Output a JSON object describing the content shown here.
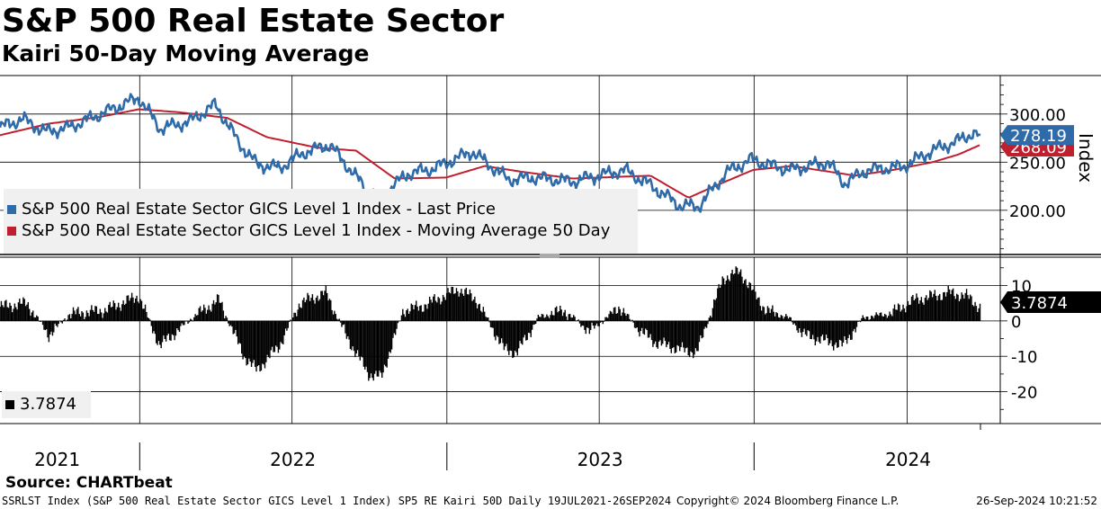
{
  "title": "S&P 500 Real Estate Sector",
  "subtitle": "Kairi 50-Day Moving Average",
  "source": "Source: CHARTbeat",
  "footer": {
    "left": "SSRLST Index (S&P 500 Real Estate Sector GICS Level 1 Index) SP5 RE Kairi 50D  Daily 19JUL2021-26SEP2024",
    "mid": "Copyright© 2024 Bloomberg Finance L.P.",
    "right": "26-Sep-2024 10:21:52"
  },
  "colors": {
    "price": "#2e6ba8",
    "ma": "#c0202e",
    "kairi": "#000000"
  },
  "chart_data": [
    {
      "type": "line",
      "ylabel": "Index",
      "ylim": [
        155,
        340
      ],
      "yticks": [
        "200.00",
        "250.00",
        "300.00"
      ],
      "xrange": [
        "2021-07-19",
        "2024-09-26"
      ],
      "legend": [
        "S&P 500 Real Estate Sector GICS Level 1 Index - Last Price",
        "S&P 500 Real Estate Sector GICS Level 1 Index - Moving Average 50 Day"
      ],
      "last_values": {
        "price": "278.19",
        "ma": "268.09"
      },
      "series": [
        {
          "name": "S&P 500 Real Estate Sector GICS Level 1 Index - Last Price",
          "x": [
            "2021-07-19",
            "2021-08-15",
            "2021-09-10",
            "2021-10-05",
            "2021-11-05",
            "2021-12-31",
            "2022-01-25",
            "2022-03-01",
            "2022-04-01",
            "2022-04-29",
            "2022-05-20",
            "2022-06-16",
            "2022-07-15",
            "2022-08-15",
            "2022-09-30",
            "2022-10-13",
            "2022-11-15",
            "2022-12-15",
            "2023-01-31",
            "2023-03-15",
            "2023-04-15",
            "2023-05-30",
            "2023-07-31",
            "2023-08-31",
            "2023-10-05",
            "2023-10-27",
            "2023-11-30",
            "2023-12-29",
            "2024-01-15",
            "2024-02-13",
            "2024-03-29",
            "2024-04-17",
            "2024-05-15",
            "2024-06-25",
            "2024-07-31",
            "2024-08-30",
            "2024-09-16",
            "2024-09-26"
          ],
          "values": [
            286,
            295,
            282,
            285,
            296,
            317,
            285,
            292,
            310,
            270,
            248,
            244,
            260,
            268,
            219,
            213,
            238,
            243,
            261,
            232,
            234,
            230,
            242,
            226,
            205,
            204,
            240,
            253,
            248,
            242,
            250,
            228,
            242,
            245,
            262,
            272,
            280,
            278.19
          ]
        },
        {
          "name": "S&P 500 Real Estate Sector GICS Level 1 Index - Moving Average 50 Day",
          "x": [
            "2021-07-19",
            "2021-09-15",
            "2021-11-15",
            "2021-12-31",
            "2022-02-15",
            "2022-04-15",
            "2022-06-01",
            "2022-07-31",
            "2022-09-15",
            "2022-10-31",
            "2022-12-31",
            "2023-02-15",
            "2023-03-31",
            "2023-05-31",
            "2023-08-31",
            "2023-10-15",
            "2023-11-15",
            "2023-12-31",
            "2024-02-15",
            "2024-04-30",
            "2024-06-15",
            "2024-07-31",
            "2024-08-31",
            "2024-09-26"
          ],
          "values": [
            278,
            290,
            297,
            305,
            302,
            296,
            276,
            265,
            262,
            233,
            234,
            246,
            240,
            233,
            236,
            213,
            225,
            242,
            246,
            236,
            242,
            250,
            258,
            268.09
          ]
        }
      ]
    },
    {
      "type": "bar",
      "ylim": [
        -29,
        18
      ],
      "yticks": [
        "-20",
        "-10",
        "0",
        "10"
      ],
      "legend": [
        "3.7874"
      ],
      "last_value": "3.7874",
      "series": [
        {
          "name": "3.7874",
          "x": [
            "2021-07-19",
            "2021-08-20",
            "2021-09-15",
            "2021-10-10",
            "2021-11-20",
            "2021-12-31",
            "2022-01-25",
            "2022-03-05",
            "2022-04-05",
            "2022-05-05",
            "2022-05-20",
            "2022-06-16",
            "2022-07-10",
            "2022-08-10",
            "2022-09-05",
            "2022-09-30",
            "2022-10-15",
            "2022-11-10",
            "2022-12-01",
            "2023-01-15",
            "2023-02-05",
            "2023-03-10",
            "2023-03-25",
            "2023-04-20",
            "2023-05-20",
            "2023-06-20",
            "2023-07-25",
            "2023-08-15",
            "2023-09-05",
            "2023-10-05",
            "2023-10-25",
            "2023-11-25",
            "2023-12-15",
            "2024-01-15",
            "2024-02-10",
            "2024-03-01",
            "2024-04-15",
            "2024-05-10",
            "2024-06-10",
            "2024-07-10",
            "2024-07-31",
            "2024-08-20",
            "2024-09-10",
            "2024-09-26"
          ],
          "values": [
            4,
            5,
            -4,
            2,
            3,
            7,
            -7,
            1,
            6,
            -10,
            -14,
            -7,
            5,
            8,
            -5,
            -15,
            -16,
            3,
            4,
            9,
            6,
            -8,
            -9,
            1,
            3,
            -3,
            4,
            -2,
            -6,
            -8,
            -9,
            12,
            14,
            3,
            1,
            -4,
            -7,
            1,
            2,
            6,
            7,
            8,
            7,
            3.7874
          ]
        }
      ]
    }
  ],
  "xaxis_labels": [
    "2021",
    "2022",
    "2023",
    "2024"
  ]
}
